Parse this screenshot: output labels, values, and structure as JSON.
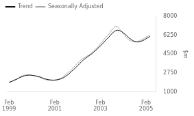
{
  "chart_data": {
    "type": "line",
    "ylabel": "$m",
    "x": [
      1999.08,
      1999.17,
      1999.25,
      1999.33,
      1999.42,
      1999.5,
      1999.58,
      1999.67,
      1999.75,
      1999.83,
      1999.92,
      2000.0,
      2000.08,
      2000.17,
      2000.25,
      2000.33,
      2000.42,
      2000.5,
      2000.58,
      2000.67,
      2000.75,
      2000.83,
      2000.92,
      2001.0,
      2001.08,
      2001.17,
      2001.25,
      2001.33,
      2001.42,
      2001.5,
      2001.58,
      2001.67,
      2001.75,
      2001.83,
      2001.92,
      2002.0,
      2002.08,
      2002.17,
      2002.25,
      2002.33,
      2002.42,
      2002.5,
      2002.58,
      2002.67,
      2002.75,
      2002.83,
      2002.92,
      2003.0,
      2003.08,
      2003.17,
      2003.25,
      2003.33,
      2003.42,
      2003.5,
      2003.58,
      2003.67,
      2003.75,
      2003.83,
      2003.92,
      2004.0,
      2004.08,
      2004.17,
      2004.25,
      2004.33,
      2004.42,
      2004.5,
      2004.58,
      2004.67,
      2004.75,
      2004.83,
      2004.92,
      2005.0,
      2005.08,
      2005.17,
      2005.25
    ],
    "series": [
      {
        "name": "Trend",
        "color": "#111111",
        "values": [
          1900,
          1960,
          2020,
          2100,
          2180,
          2280,
          2360,
          2430,
          2490,
          2530,
          2555,
          2560,
          2545,
          2520,
          2490,
          2450,
          2400,
          2340,
          2270,
          2210,
          2160,
          2130,
          2110,
          2100,
          2105,
          2120,
          2150,
          2200,
          2270,
          2370,
          2480,
          2620,
          2770,
          2930,
          3090,
          3260,
          3430,
          3620,
          3800,
          3960,
          4100,
          4230,
          4360,
          4480,
          4620,
          4780,
          4940,
          5100,
          5280,
          5460,
          5650,
          5840,
          6020,
          6200,
          6400,
          6570,
          6680,
          6720,
          6680,
          6600,
          6480,
          6340,
          6180,
          6020,
          5880,
          5760,
          5680,
          5640,
          5640,
          5680,
          5740,
          5820,
          5930,
          6040,
          6150
        ]
      },
      {
        "name": "Seasonally Adjusted",
        "color": "#aaaaaa",
        "values": [
          1870,
          1950,
          2080,
          2150,
          2200,
          2310,
          2420,
          2500,
          2560,
          2580,
          2590,
          2570,
          2550,
          2500,
          2460,
          2410,
          2360,
          2290,
          2210,
          2150,
          2110,
          2090,
          2080,
          2070,
          2090,
          2130,
          2180,
          2260,
          2360,
          2500,
          2640,
          2800,
          2960,
          3130,
          3310,
          3490,
          3670,
          3860,
          4010,
          4130,
          4200,
          4330,
          4420,
          4560,
          4710,
          4890,
          5060,
          5220,
          5450,
          5680,
          5900,
          6080,
          6250,
          6500,
          6750,
          6950,
          7080,
          7050,
          6820,
          6620,
          6400,
          6200,
          5980,
          5820,
          5720,
          5680,
          5660,
          5650,
          5700,
          5780,
          5870,
          5950,
          6080,
          6180,
          6240
        ]
      }
    ],
    "xlim": [
      1999.0,
      2005.5
    ],
    "xticks": [
      {
        "value": 1999.08,
        "label": "Feb\n1999"
      },
      {
        "value": 2001.08,
        "label": "Feb\n2001"
      },
      {
        "value": 2003.08,
        "label": "Feb\n2003"
      },
      {
        "value": 2005.08,
        "label": "Feb\n2005"
      }
    ],
    "ylim": [
      1000,
      8000
    ],
    "yticks": [
      1000,
      2750,
      4500,
      6250,
      8000
    ],
    "grid": false,
    "legend": "upper left"
  }
}
